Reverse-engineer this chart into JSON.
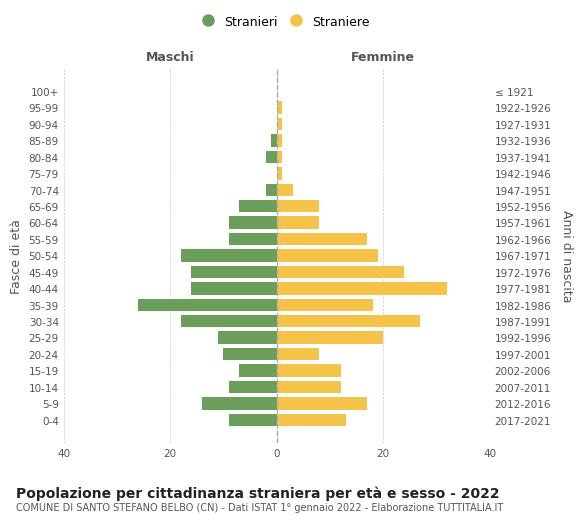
{
  "age_groups": [
    "0-4",
    "5-9",
    "10-14",
    "15-19",
    "20-24",
    "25-29",
    "30-34",
    "35-39",
    "40-44",
    "45-49",
    "50-54",
    "55-59",
    "60-64",
    "65-69",
    "70-74",
    "75-79",
    "80-84",
    "85-89",
    "90-94",
    "95-99",
    "100+"
  ],
  "birth_years": [
    "2017-2021",
    "2012-2016",
    "2007-2011",
    "2002-2006",
    "1997-2001",
    "1992-1996",
    "1987-1991",
    "1982-1986",
    "1977-1981",
    "1972-1976",
    "1967-1971",
    "1962-1966",
    "1957-1961",
    "1952-1956",
    "1947-1951",
    "1942-1946",
    "1937-1941",
    "1932-1936",
    "1927-1931",
    "1922-1926",
    "≤ 1921"
  ],
  "maschi": [
    9,
    14,
    9,
    7,
    10,
    11,
    18,
    26,
    16,
    16,
    18,
    9,
    9,
    7,
    2,
    0,
    2,
    1,
    0,
    0,
    0
  ],
  "femmine": [
    13,
    17,
    12,
    12,
    8,
    20,
    27,
    18,
    32,
    24,
    19,
    17,
    8,
    8,
    3,
    1,
    1,
    1,
    1,
    1,
    0
  ],
  "male_color": "#6a9e5a",
  "female_color": "#f5c34a",
  "xlim": 40,
  "title": "Popolazione per cittadinanza straniera per età e sesso - 2022",
  "subtitle": "COMUNE DI SANTO STEFANO BELBO (CN) - Dati ISTAT 1° gennaio 2022 - Elaborazione TUTTITALIA.IT",
  "ylabel_left": "Fasce di età",
  "ylabel_right": "Anni di nascita",
  "xlabel_left": "Maschi",
  "xlabel_right": "Femmine",
  "legend_stranieri": "Stranieri",
  "legend_straniere": "Straniere",
  "bg_color": "#ffffff",
  "grid_color": "#cccccc",
  "title_fontsize": 10,
  "subtitle_fontsize": 7,
  "axis_label_fontsize": 9,
  "tick_fontsize": 7.5
}
